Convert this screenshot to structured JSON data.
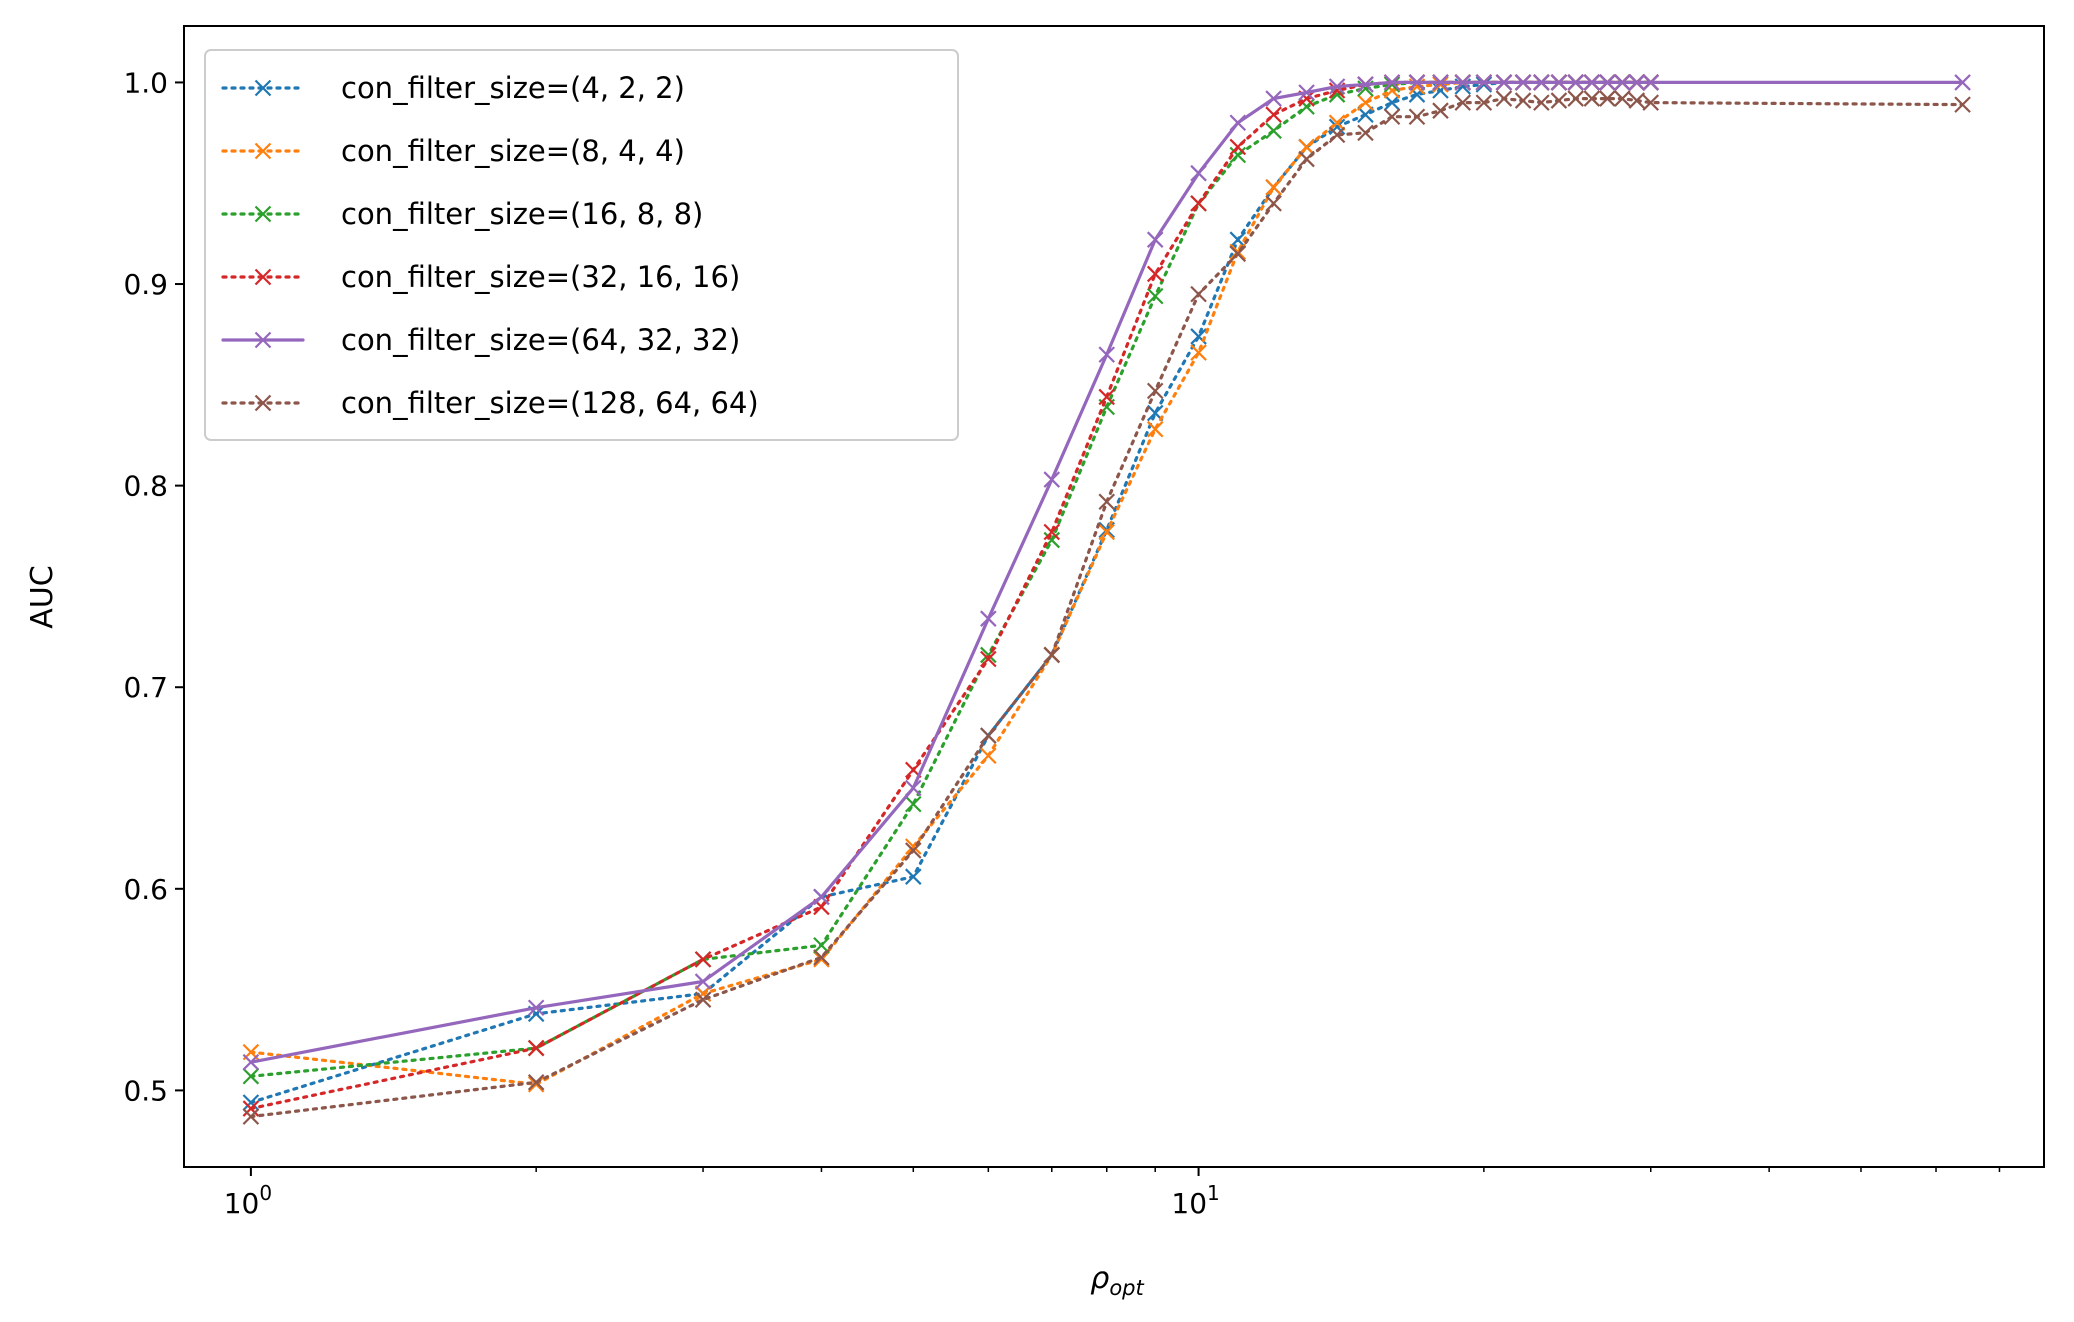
{
  "chart_data": {
    "type": "line",
    "title": "",
    "xlabel": "ρ",
    "xlabel_subscript": "opt",
    "ylabel": "AUC",
    "xscale": "log",
    "xlim": [
      0.85,
      78
    ],
    "ylim": [
      0.462,
      1.028
    ],
    "x_major_ticks": [
      1,
      10
    ],
    "x_tick_labels": [
      {
        "base": "10",
        "exp": "0"
      },
      {
        "base": "10",
        "exp": "1"
      }
    ],
    "y_ticks": [
      0.5,
      0.6,
      0.7,
      0.8,
      0.9,
      1.0
    ],
    "y_tick_labels": [
      "0.5",
      "0.6",
      "0.7",
      "0.8",
      "0.9",
      "1.0"
    ],
    "legend_position": "top-left",
    "series": [
      {
        "name": "con_filter_size=(4, 2, 2)",
        "color": "#1f77b4",
        "linestyle": "dotted",
        "x": [
          1,
          2,
          3,
          4,
          5,
          6,
          7,
          8,
          9,
          10,
          11,
          12,
          13,
          14,
          15,
          16,
          17,
          18,
          19,
          20,
          21,
          22,
          23,
          24,
          25,
          26,
          27,
          28,
          29,
          30
        ],
        "y": [
          0.494,
          0.538,
          0.548,
          0.596,
          0.606,
          0.676,
          0.716,
          0.778,
          0.836,
          0.874,
          0.922,
          0.948,
          0.968,
          0.978,
          0.984,
          0.99,
          0.994,
          0.996,
          0.998,
          0.999,
          1.0,
          1.0,
          1.0,
          1.0,
          1.0,
          1.0,
          1.0,
          1.0,
          1.0,
          1.0
        ]
      },
      {
        "name": "con_filter_size=(8, 4, 4)",
        "color": "#ff7f0e",
        "linestyle": "dotted",
        "x": [
          1,
          2,
          3,
          4,
          5,
          6,
          7,
          8,
          9,
          10,
          11,
          12,
          13,
          14,
          15,
          16,
          17,
          18,
          19,
          20,
          21,
          22,
          23,
          24,
          25,
          26,
          27,
          28,
          29,
          30
        ],
        "y": [
          0.519,
          0.503,
          0.548,
          0.565,
          0.621,
          0.666,
          0.716,
          0.777,
          0.828,
          0.866,
          0.916,
          0.948,
          0.968,
          0.98,
          0.99,
          0.996,
          0.998,
          0.999,
          1.0,
          1.0,
          1.0,
          1.0,
          1.0,
          1.0,
          1.0,
          1.0,
          1.0,
          1.0,
          1.0,
          1.0
        ]
      },
      {
        "name": "con_filter_size=(16, 8, 8)",
        "color": "#2ca02c",
        "linestyle": "dotted",
        "x": [
          1,
          2,
          3,
          4,
          5,
          6,
          7,
          8,
          9,
          10,
          11,
          12,
          13,
          14,
          15,
          16,
          17,
          18,
          19,
          20,
          21,
          22,
          23,
          24,
          25,
          26,
          27,
          28,
          29,
          30
        ],
        "y": [
          0.507,
          0.521,
          0.565,
          0.572,
          0.642,
          0.716,
          0.773,
          0.839,
          0.894,
          0.94,
          0.964,
          0.976,
          0.988,
          0.994,
          0.997,
          0.999,
          1.0,
          1.0,
          1.0,
          1.0,
          1.0,
          1.0,
          1.0,
          1.0,
          1.0,
          1.0,
          1.0,
          1.0,
          1.0,
          1.0
        ]
      },
      {
        "name": "con_filter_size=(32, 16, 16)",
        "color": "#d62728",
        "linestyle": "dotted",
        "x": [
          1,
          2,
          3,
          4,
          5,
          6,
          7,
          8,
          9,
          10,
          11,
          12,
          13,
          14,
          15,
          16,
          17,
          18,
          19,
          20,
          21,
          22,
          23,
          24,
          25,
          26,
          27,
          28,
          29,
          30
        ],
        "y": [
          0.491,
          0.521,
          0.565,
          0.591,
          0.659,
          0.714,
          0.777,
          0.844,
          0.905,
          0.94,
          0.968,
          0.984,
          0.992,
          0.996,
          0.999,
          1.0,
          1.0,
          1.0,
          1.0,
          1.0,
          1.0,
          1.0,
          1.0,
          1.0,
          1.0,
          1.0,
          1.0,
          1.0,
          1.0,
          1.0
        ]
      },
      {
        "name": "con_filter_size=(64, 32, 32)",
        "color": "#9467bd",
        "linestyle": "solid",
        "x": [
          1,
          2,
          3,
          4,
          5,
          6,
          7,
          8,
          9,
          10,
          11,
          12,
          13,
          14,
          15,
          16,
          17,
          18,
          19,
          20,
          21,
          22,
          23,
          24,
          25,
          26,
          27,
          28,
          29,
          30,
          64
        ],
        "y": [
          0.514,
          0.541,
          0.554,
          0.596,
          0.65,
          0.734,
          0.803,
          0.865,
          0.922,
          0.955,
          0.98,
          0.992,
          0.995,
          0.998,
          0.999,
          1.0,
          1.0,
          1.0,
          1.0,
          1.0,
          1.0,
          1.0,
          1.0,
          1.0,
          1.0,
          1.0,
          1.0,
          1.0,
          1.0,
          1.0,
          1.0
        ]
      },
      {
        "name": "con_filter_size=(128, 64, 64)",
        "color": "#8c564b",
        "linestyle": "dotted",
        "x": [
          1,
          2,
          3,
          4,
          5,
          6,
          7,
          8,
          9,
          10,
          11,
          12,
          13,
          14,
          15,
          16,
          17,
          18,
          19,
          20,
          21,
          22,
          23,
          24,
          25,
          26,
          27,
          28,
          29,
          30,
          64
        ],
        "y": [
          0.487,
          0.504,
          0.545,
          0.566,
          0.619,
          0.676,
          0.716,
          0.792,
          0.847,
          0.895,
          0.915,
          0.94,
          0.962,
          0.974,
          0.975,
          0.983,
          0.983,
          0.986,
          0.99,
          0.99,
          0.992,
          0.991,
          0.99,
          0.991,
          0.992,
          0.992,
          0.992,
          0.992,
          0.991,
          0.99,
          0.989
        ]
      }
    ]
  }
}
